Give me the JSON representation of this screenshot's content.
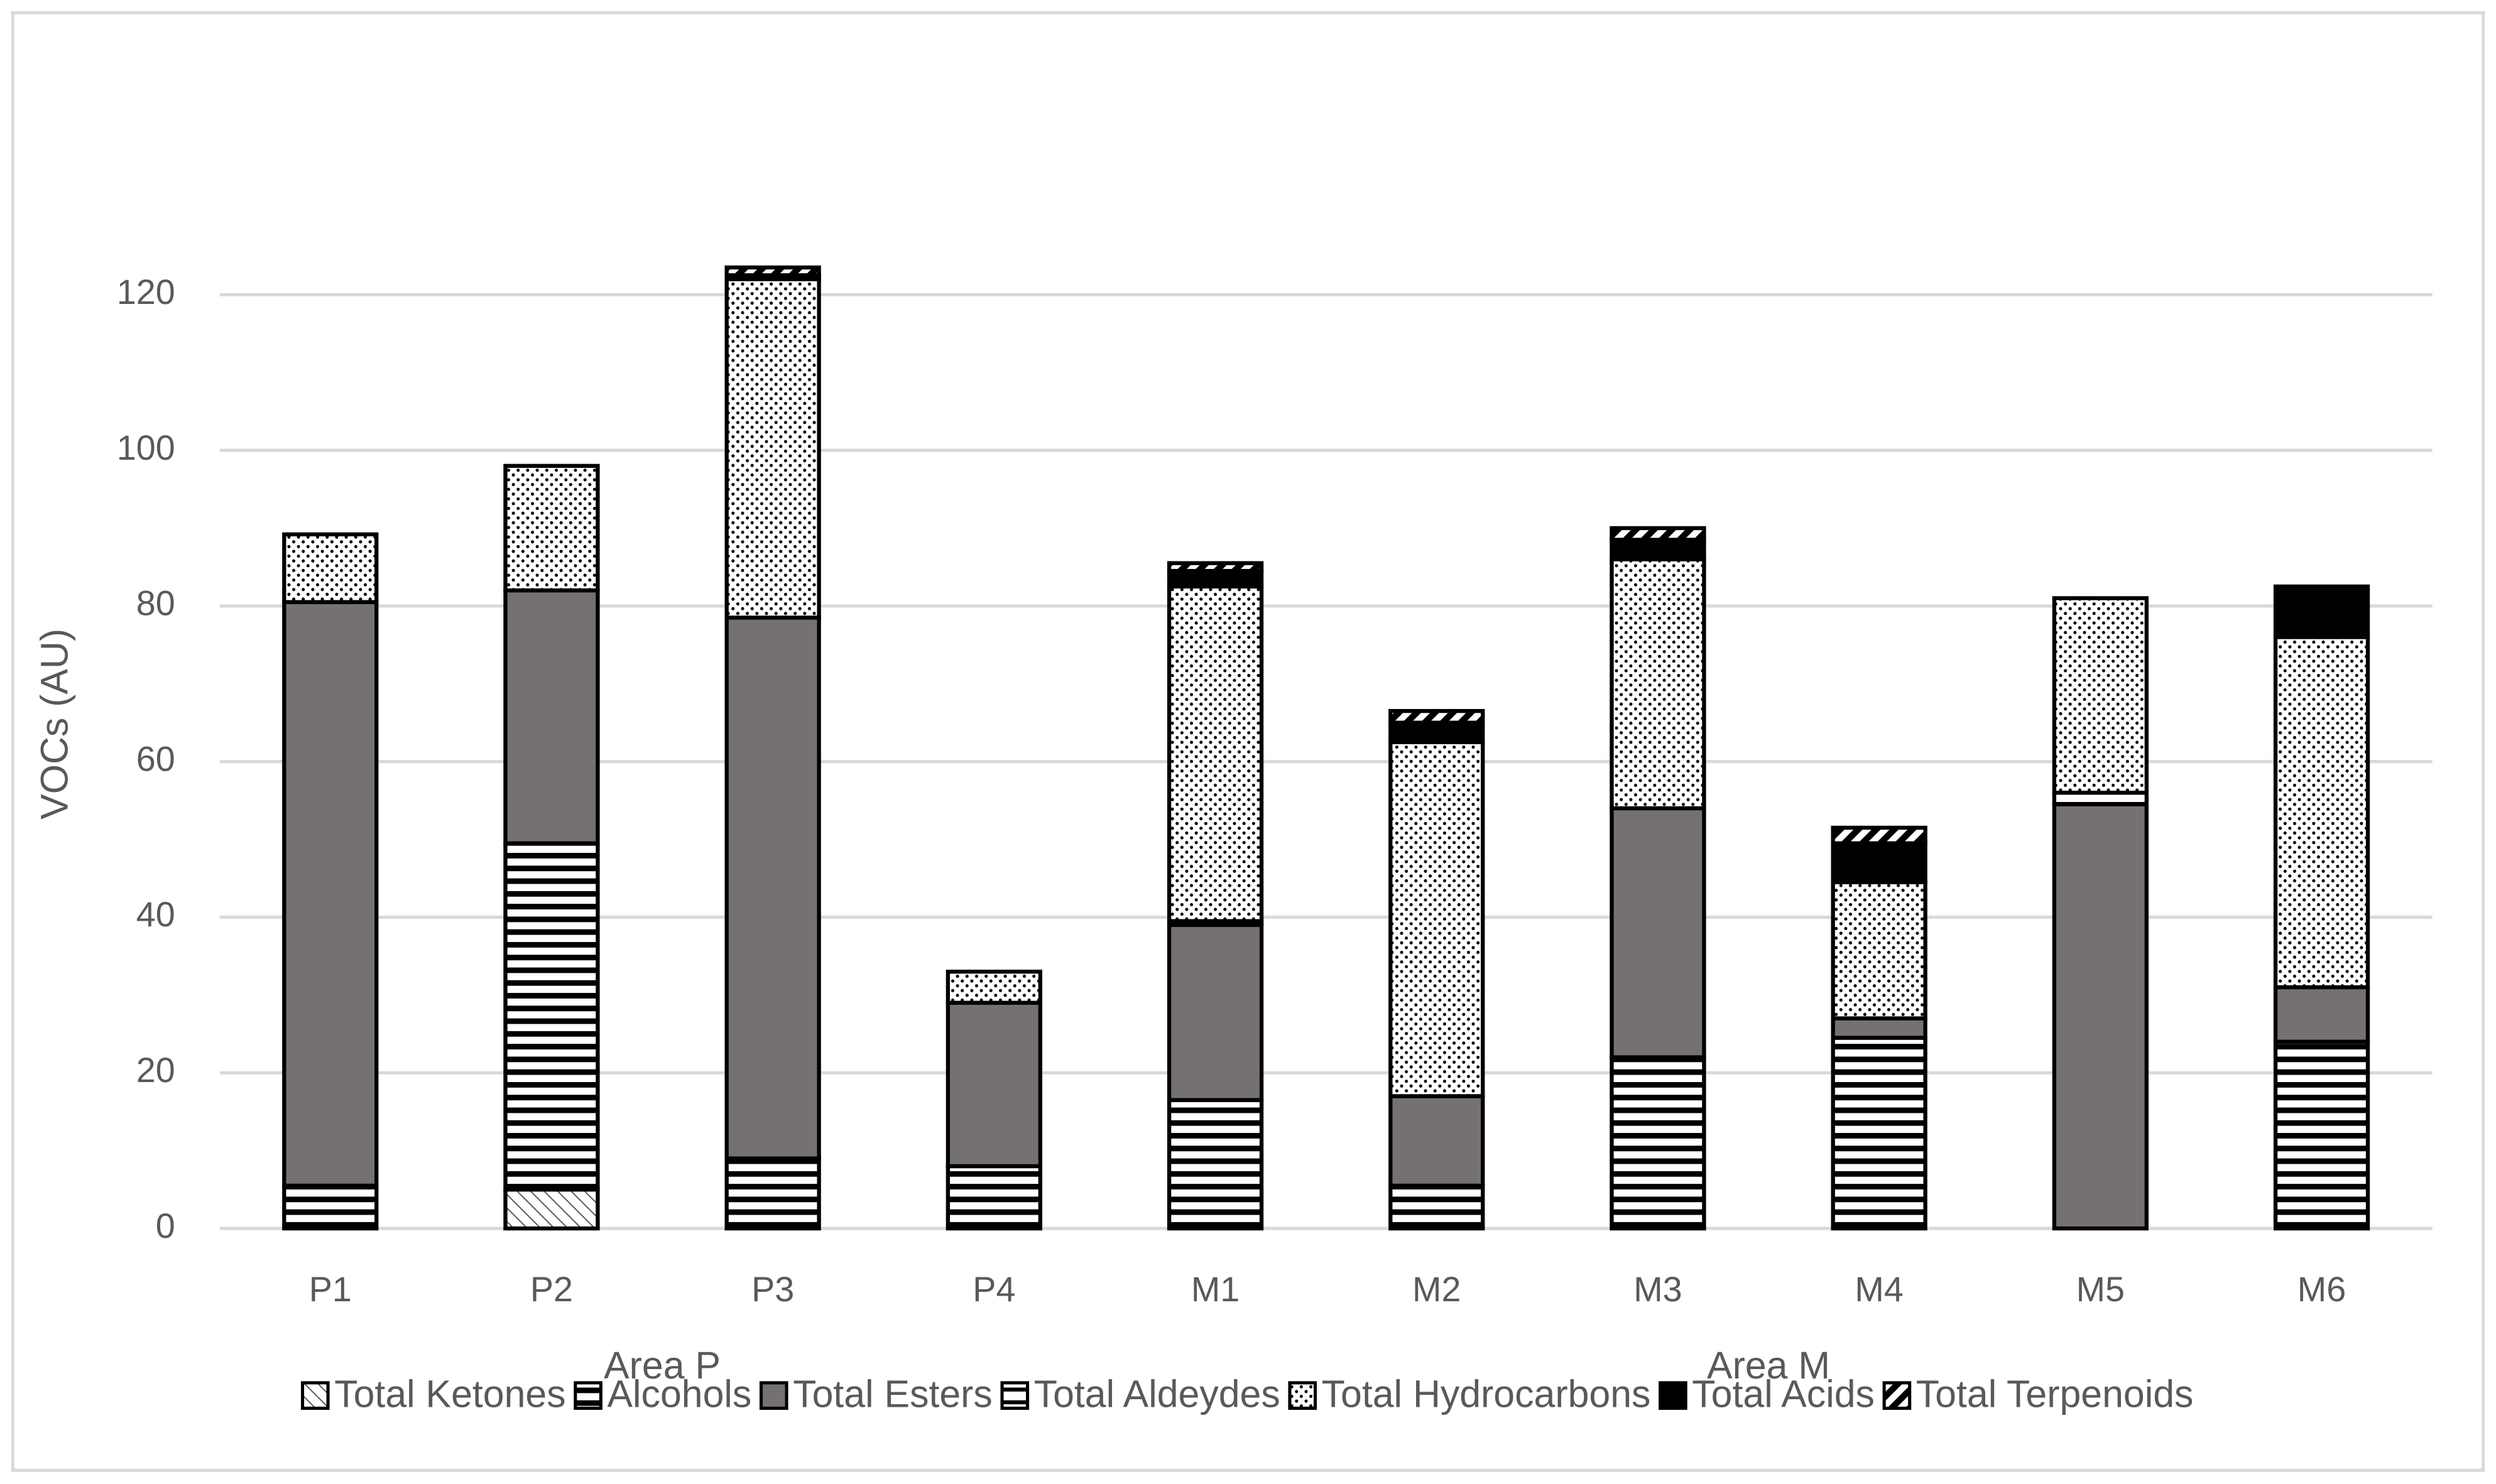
{
  "chart_data": {
    "type": "stacked_bar",
    "y_label": "VOCs (AU)",
    "categories": [
      "P1",
      "P2",
      "P3",
      "P4",
      "M1",
      "M2",
      "M3",
      "M4",
      "M5",
      "M6"
    ],
    "groups": [
      {
        "label": "Area P",
        "count": 4
      },
      {
        "label": "Area M",
        "count": 6
      }
    ],
    "series": [
      {
        "name": "Total Ketones",
        "color": "#000000",
        "pattern": "diagonal",
        "values": [
          0,
          5,
          0,
          0,
          0,
          0,
          0,
          0,
          0,
          0
        ]
      },
      {
        "name": "Alcohols",
        "color": "#000000",
        "pattern": "hlines",
        "values": [
          5.5,
          44.5,
          9,
          8,
          16.5,
          5.5,
          22,
          24.5,
          0,
          24
        ]
      },
      {
        "name": "Total Esters",
        "color": "#767171",
        "pattern": "solid",
        "values": [
          75,
          32.5,
          69.5,
          21,
          22.5,
          11.5,
          32,
          2.5,
          54.5,
          7
        ]
      },
      {
        "name": "Total Aldeydes",
        "color": "#000000",
        "pattern": "hlines-sparse",
        "values": [
          0,
          0,
          0,
          0,
          0.5,
          0,
          0,
          0,
          1.5,
          0
        ]
      },
      {
        "name": "Total Hydrocarbons",
        "color": "#000000",
        "pattern": "dots",
        "values": [
          8.7,
          16,
          43.5,
          4,
          43,
          45.5,
          32,
          17.5,
          25,
          45
        ]
      },
      {
        "name": "Total Acids",
        "color": "#000000",
        "pattern": "solid",
        "values": [
          0,
          0,
          0.5,
          0,
          2,
          2.5,
          2.5,
          5,
          0,
          6.5
        ]
      },
      {
        "name": "Total Terpenoids",
        "color": "#000000",
        "pattern": "diagonal-wide",
        "values": [
          0,
          0,
          1,
          0,
          1,
          1.5,
          1.5,
          2,
          0,
          0
        ]
      }
    ],
    "ylim": [
      0,
      140
    ],
    "yticks": [
      0,
      20,
      40,
      60,
      80,
      100,
      120
    ],
    "grid": true,
    "legend": "bottom"
  }
}
